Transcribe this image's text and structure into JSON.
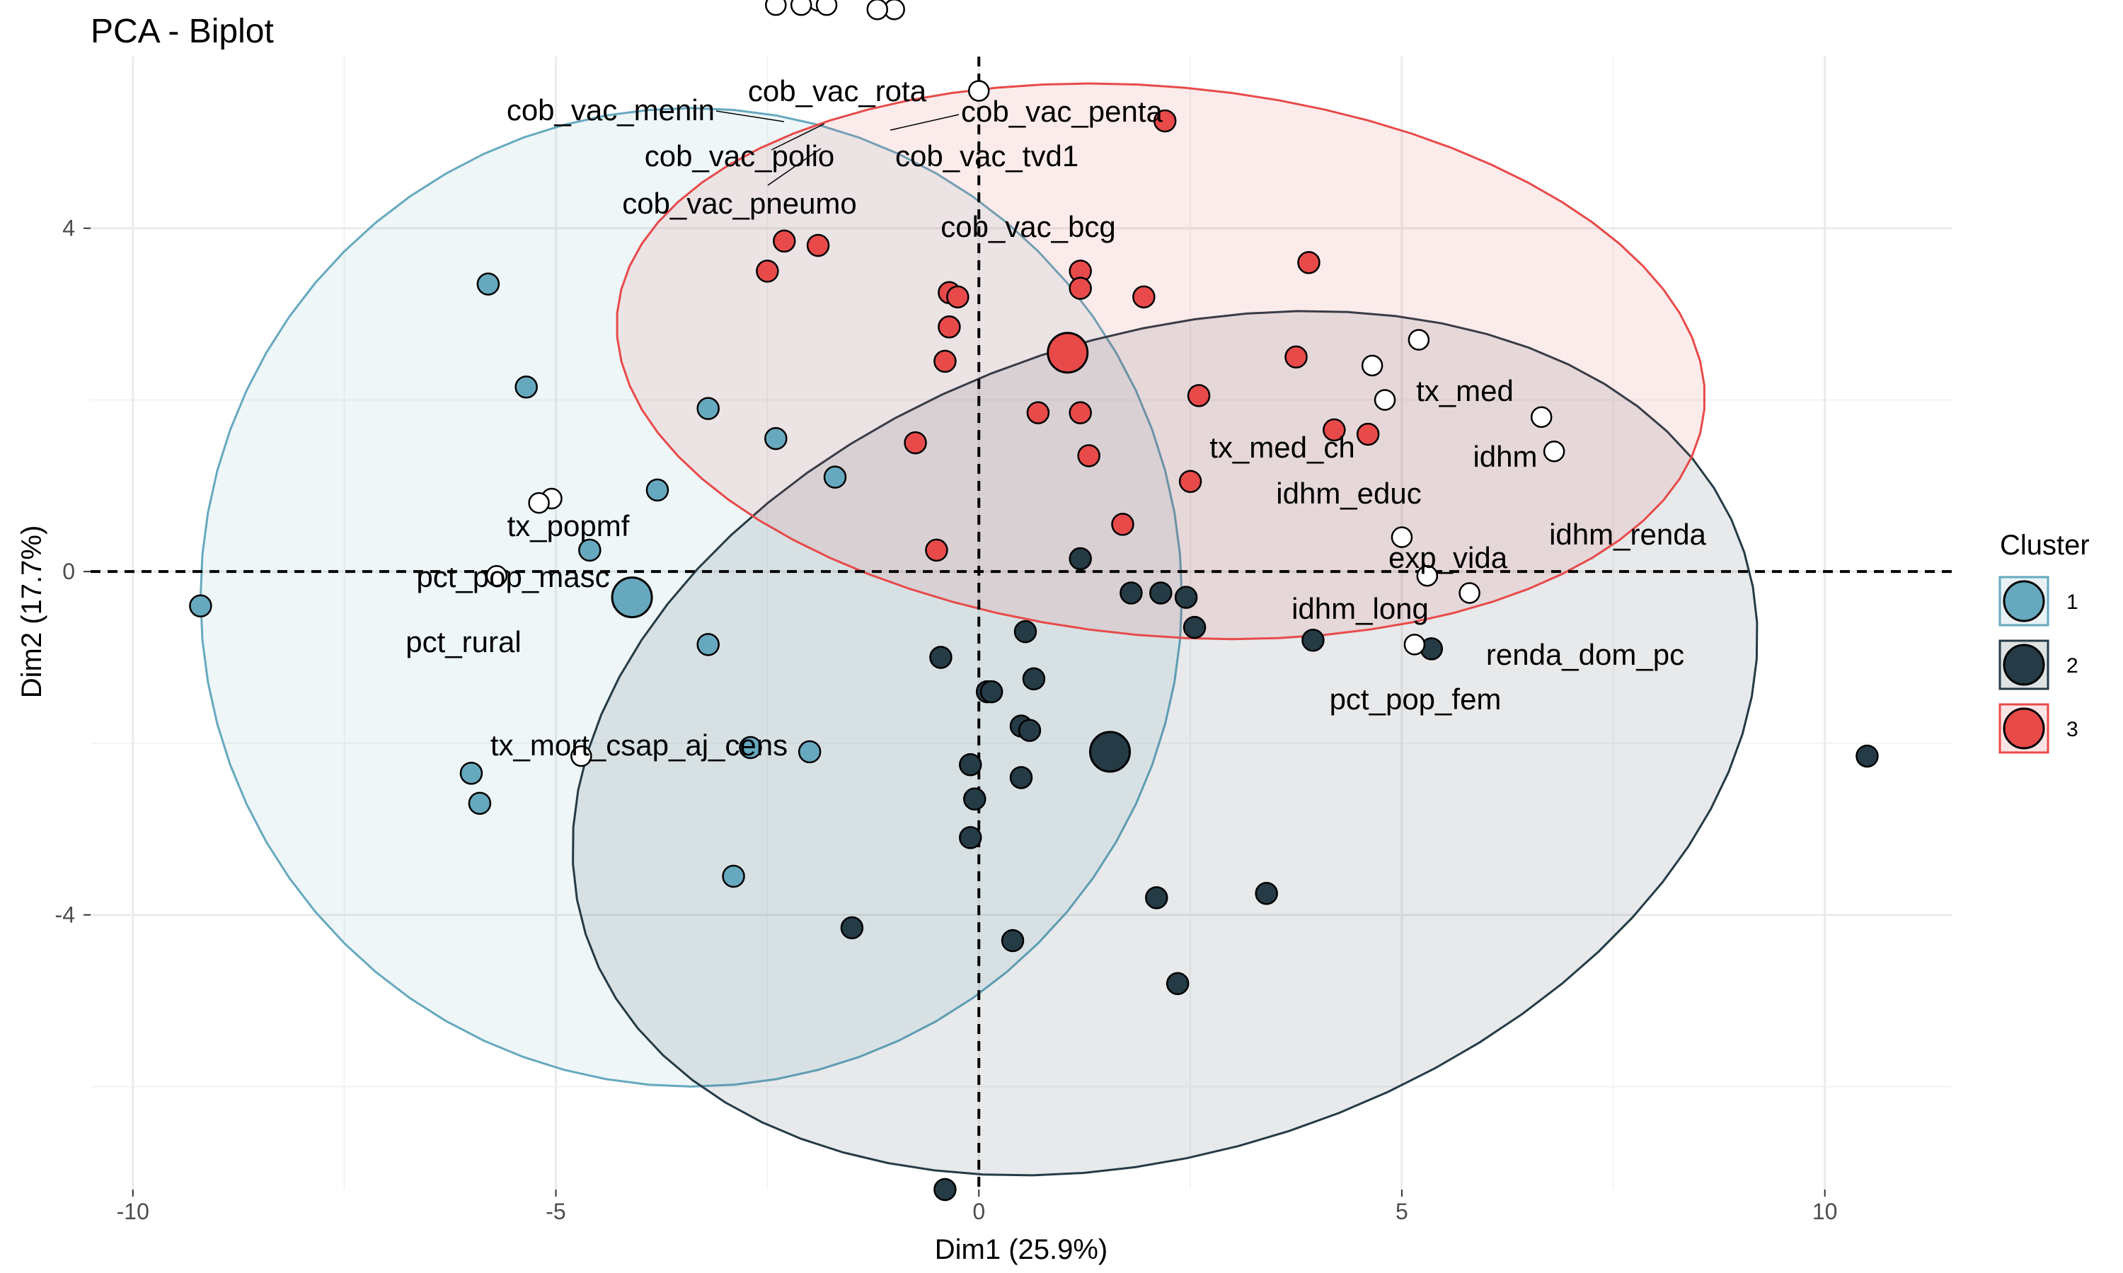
{
  "chart_data": {
    "type": "scatter",
    "title": "PCA - Biplot",
    "xlabel": "Dim1 (25.9%)",
    "ylabel": "Dim2 (17.7%)",
    "xlim": [
      -10.5,
      11.5
    ],
    "ylim": [
      -7.2,
      6.0
    ],
    "x_ticks": [
      -10,
      -5,
      0,
      5,
      10
    ],
    "y_ticks": [
      -4,
      0,
      4
    ],
    "grid": true,
    "zero_lines": "dashed",
    "legend": {
      "title": "Cluster",
      "position": "right"
    },
    "clusters": [
      {
        "name": "1",
        "color": "#66A9BF",
        "ellipse": {
          "cx": -3.4,
          "cy": -0.3,
          "rx": 5.8,
          "ry": 5.7,
          "angle_deg": 0
        },
        "centroid": {
          "x": -4.1,
          "y": -0.3
        },
        "points": [
          {
            "x": -9.2,
            "y": -0.4
          },
          {
            "x": -5.8,
            "y": 3.35
          },
          {
            "x": -5.35,
            "y": 2.15
          },
          {
            "x": -4.6,
            "y": 0.25
          },
          {
            "x": -3.8,
            "y": 0.95
          },
          {
            "x": -3.2,
            "y": 1.9
          },
          {
            "x": -2.4,
            "y": 1.55
          },
          {
            "x": -1.7,
            "y": 1.1
          },
          {
            "x": -3.2,
            "y": -0.85
          },
          {
            "x": -2.7,
            "y": -2.05
          },
          {
            "x": -2.0,
            "y": -2.1
          },
          {
            "x": -6.0,
            "y": -2.35
          },
          {
            "x": -5.9,
            "y": -2.7
          },
          {
            "x": -2.9,
            "y": -3.55
          }
        ]
      },
      {
        "name": "2",
        "color": "#253B46",
        "ellipse": {
          "cx": 2.2,
          "cy": -2.0,
          "rx": 7.2,
          "ry": 4.75,
          "angle_deg": 18
        },
        "centroid": {
          "x": 1.55,
          "y": -2.1
        },
        "points": [
          {
            "x": 10.5,
            "y": -2.15
          },
          {
            "x": -0.45,
            "y": -1.0
          },
          {
            "x": 0.55,
            "y": -0.7
          },
          {
            "x": 0.1,
            "y": -1.4
          },
          {
            "x": 0.15,
            "y": -1.4
          },
          {
            "x": 0.65,
            "y": -1.25
          },
          {
            "x": 0.5,
            "y": -1.8
          },
          {
            "x": 0.6,
            "y": -1.85
          },
          {
            "x": -0.1,
            "y": -2.25
          },
          {
            "x": 0.5,
            "y": -2.4
          },
          {
            "x": -0.05,
            "y": -2.65
          },
          {
            "x": -0.1,
            "y": -3.1
          },
          {
            "x": -1.5,
            "y": -4.15
          },
          {
            "x": 0.4,
            "y": -4.3
          },
          {
            "x": 2.1,
            "y": -3.8
          },
          {
            "x": 3.4,
            "y": -3.75
          },
          {
            "x": 2.35,
            "y": -4.8
          },
          {
            "x": -0.4,
            "y": -7.2
          },
          {
            "x": 1.2,
            "y": 0.15
          },
          {
            "x": 1.8,
            "y": -0.25
          },
          {
            "x": 2.15,
            "y": -0.25
          },
          {
            "x": 2.45,
            "y": -0.3
          },
          {
            "x": 2.55,
            "y": -0.65
          },
          {
            "x": 3.95,
            "y": -0.8
          },
          {
            "x": 5.35,
            "y": -0.9
          }
        ]
      },
      {
        "name": "3",
        "color": "#E84A4A",
        "ellipse": {
          "cx": 2.15,
          "cy": 2.45,
          "rx": 6.45,
          "ry": 3.2,
          "angle_deg": -5
        },
        "centroid": {
          "x": 1.05,
          "y": 2.55
        },
        "points": [
          {
            "x": 2.2,
            "y": 5.25
          },
          {
            "x": -2.3,
            "y": 3.85
          },
          {
            "x": -1.9,
            "y": 3.8
          },
          {
            "x": -2.5,
            "y": 3.5
          },
          {
            "x": -0.35,
            "y": 3.25
          },
          {
            "x": -0.25,
            "y": 3.2
          },
          {
            "x": 1.2,
            "y": 3.5
          },
          {
            "x": 1.2,
            "y": 3.3
          },
          {
            "x": 1.95,
            "y": 3.2
          },
          {
            "x": 3.9,
            "y": 3.6
          },
          {
            "x": -0.35,
            "y": 2.85
          },
          {
            "x": -0.4,
            "y": 2.45
          },
          {
            "x": 3.75,
            "y": 2.5
          },
          {
            "x": 2.6,
            "y": 2.05
          },
          {
            "x": 0.7,
            "y": 1.85
          },
          {
            "x": 1.2,
            "y": 1.85
          },
          {
            "x": 4.2,
            "y": 1.65
          },
          {
            "x": 4.6,
            "y": 1.6
          },
          {
            "x": -0.75,
            "y": 1.5
          },
          {
            "x": 1.3,
            "y": 1.35
          },
          {
            "x": 2.5,
            "y": 1.05
          },
          {
            "x": 1.7,
            "y": 0.55
          },
          {
            "x": -0.5,
            "y": 0.25
          }
        ]
      }
    ],
    "variables": [
      {
        "name": "cob_vac_menin",
        "x": -2.4,
        "y": 6.6
      },
      {
        "name": "cob_vac_rota",
        "x": -1.9,
        "y": 6.65
      },
      {
        "name": "cob_vac_penta",
        "x": -1.0,
        "y": 6.55
      },
      {
        "name": "cob_vac_polio",
        "x": -1.8,
        "y": 6.6
      },
      {
        "name": "cob_vac_tvd1",
        "x": -1.2,
        "y": 6.55
      },
      {
        "name": "cob_vac_pneumo",
        "x": -2.1,
        "y": 6.6
      },
      {
        "name": "cob_vac_bcg",
        "x": 0.0,
        "y": 5.6
      },
      {
        "name": "tx_med",
        "x": 5.2,
        "y": 2.7
      },
      {
        "name": "tx_med_ch",
        "x": 4.65,
        "y": 2.4
      },
      {
        "name": "idhm",
        "x": 6.65,
        "y": 1.8
      },
      {
        "name": "idhm_educ",
        "x": 4.8,
        "y": 2.0
      },
      {
        "name": "idhm_renda",
        "x": 6.8,
        "y": 1.4
      },
      {
        "name": "exp_vida",
        "x": 5.0,
        "y": 0.4
      },
      {
        "name": "idhm_long",
        "x": 5.3,
        "y": -0.05
      },
      {
        "name": "renda_dom_pc",
        "x": 5.8,
        "y": -0.25
      },
      {
        "name": "pct_pop_fem",
        "x": 5.15,
        "y": -0.85
      },
      {
        "name": "tx_popmf",
        "x": -5.05,
        "y": 0.85
      },
      {
        "name": "pct_pop_masc",
        "x": -5.2,
        "y": 0.8
      },
      {
        "name": "pct_rural",
        "x": -5.7,
        "y": -0.05
      },
      {
        "name": "tx_mort_csap_aj_cens",
        "x": -4.7,
        "y": -2.15
      }
    ]
  }
}
